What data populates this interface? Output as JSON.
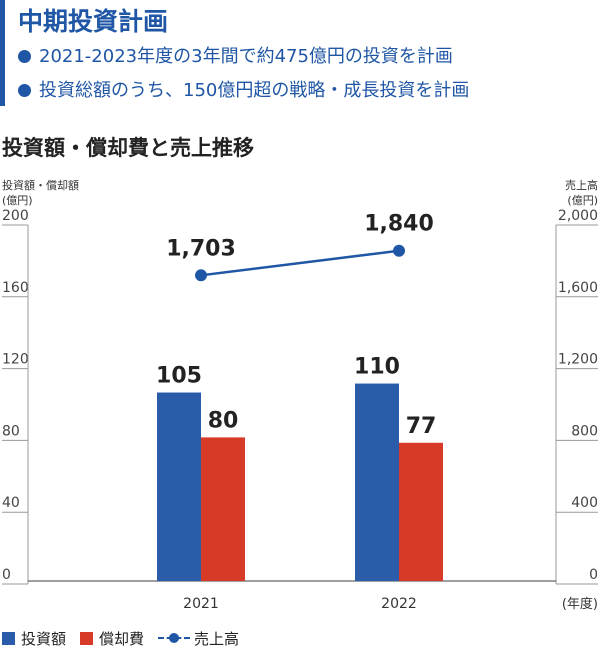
{
  "header": {
    "title": "中期投資計画",
    "bullets": [
      "2021-2023年度の3年間で約475億円の投資を計画",
      "投資総額のうち、150億円超の戦略・成長投資を計画"
    ]
  },
  "colors": {
    "investment": "#2a5caa",
    "depreciation": "#d73a26",
    "sales": "#1f56a5",
    "accent": "#1f56a5"
  },
  "chart_data": {
    "type": "bar",
    "title": "投資額・償却費と売上推移",
    "categories": [
      "2021",
      "2022"
    ],
    "xlabel_unit": "(年度)",
    "y_left": {
      "label_line1": "投資額・償却額",
      "label_line2": "(億円)",
      "ylim": [
        0,
        200
      ],
      "ticks": [
        "200",
        "160",
        "120",
        "80",
        "40",
        "0"
      ]
    },
    "y_right": {
      "label_line1": "売上高",
      "label_line2": "(億円)",
      "ylim": [
        0,
        2000
      ],
      "ticks": [
        "2,000",
        "1,600",
        "1,200",
        "800",
        "400",
        "0"
      ]
    },
    "series": [
      {
        "name": "投資額",
        "type": "bar",
        "axis": "left",
        "values": [
          105,
          110
        ],
        "labels": [
          "105",
          "110"
        ]
      },
      {
        "name": "償却費",
        "type": "bar",
        "axis": "left",
        "values": [
          80,
          77
        ],
        "labels": [
          "80",
          "77"
        ]
      },
      {
        "name": "売上高",
        "type": "line",
        "axis": "right",
        "values": [
          1703,
          1840
        ],
        "labels": [
          "1,703",
          "1,840"
        ]
      }
    ],
    "grid": false,
    "legend_position": "bottom-left"
  }
}
